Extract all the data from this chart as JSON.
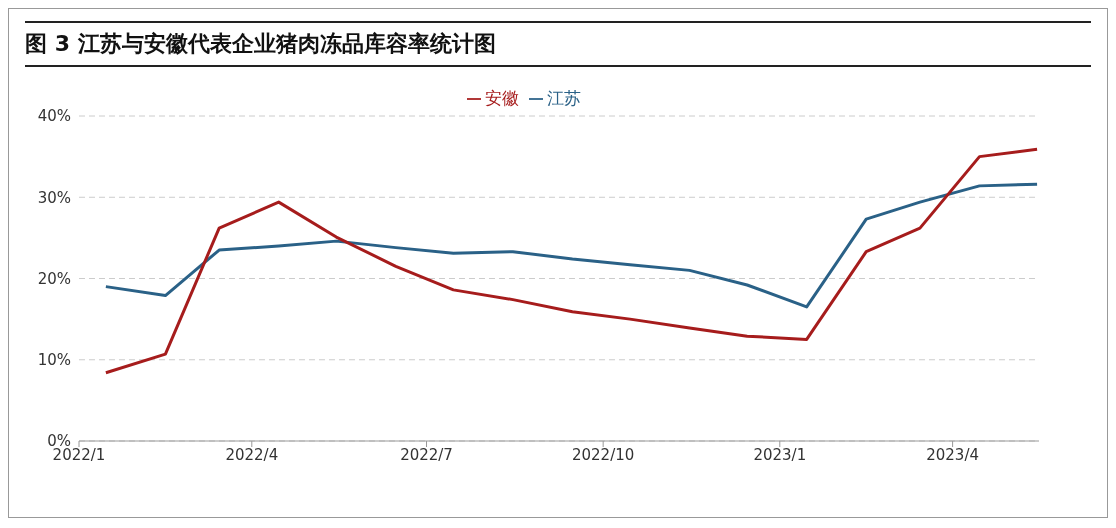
{
  "chart_data": {
    "type": "line",
    "title": "图 3 江苏与安徽代表企业猪肉冻品库容率统计图",
    "x": [
      "2022-01-15",
      "2022-02-15",
      "2022-03-15",
      "2022-04-15",
      "2022-05-15",
      "2022-06-15",
      "2022-07-15",
      "2022-08-15",
      "2022-09-15",
      "2022-10-15",
      "2022-11-15",
      "2022-12-15",
      "2023-01-15",
      "2023-02-15",
      "2023-03-15",
      "2023-04-15",
      "2023-05-15"
    ],
    "series": [
      {
        "name": "江苏",
        "color": "#2a6187",
        "values": [
          19.0,
          17.9,
          23.5,
          24.0,
          24.6,
          23.8,
          23.1,
          23.3,
          22.4,
          21.7,
          21.0,
          19.2,
          16.5,
          27.3,
          29.4,
          31.4,
          31.6
        ]
      },
      {
        "name": "安徽",
        "color": "#a61c1c",
        "values": [
          8.4,
          10.7,
          26.2,
          29.4,
          25.1,
          21.5,
          18.6,
          17.4,
          15.9,
          15.0,
          13.9,
          12.9,
          12.5,
          23.3,
          26.2,
          35.0,
          35.9
        ]
      }
    ],
    "xlim": [
      "2022-01-01",
      "2023-05-16"
    ],
    "xticks": [
      {
        "value": "2022-01",
        "label": "2022/1"
      },
      {
        "value": "2022-04",
        "label": "2022/4"
      },
      {
        "value": "2022-07",
        "label": "2022/7"
      },
      {
        "value": "2022-10",
        "label": "2022/10"
      },
      {
        "value": "2023-01",
        "label": "2023/1"
      },
      {
        "value": "2023-04",
        "label": "2023/4"
      }
    ],
    "ylim": [
      0,
      40
    ],
    "yticks": [
      {
        "value": 0,
        "label": "0%"
      },
      {
        "value": 10,
        "label": "10%"
      },
      {
        "value": 20,
        "label": "20%"
      },
      {
        "value": 30,
        "label": "30%"
      },
      {
        "value": 40,
        "label": "40%"
      }
    ],
    "grid": "y",
    "legend": "top",
    "marker": "none",
    "line_style": "solid"
  }
}
